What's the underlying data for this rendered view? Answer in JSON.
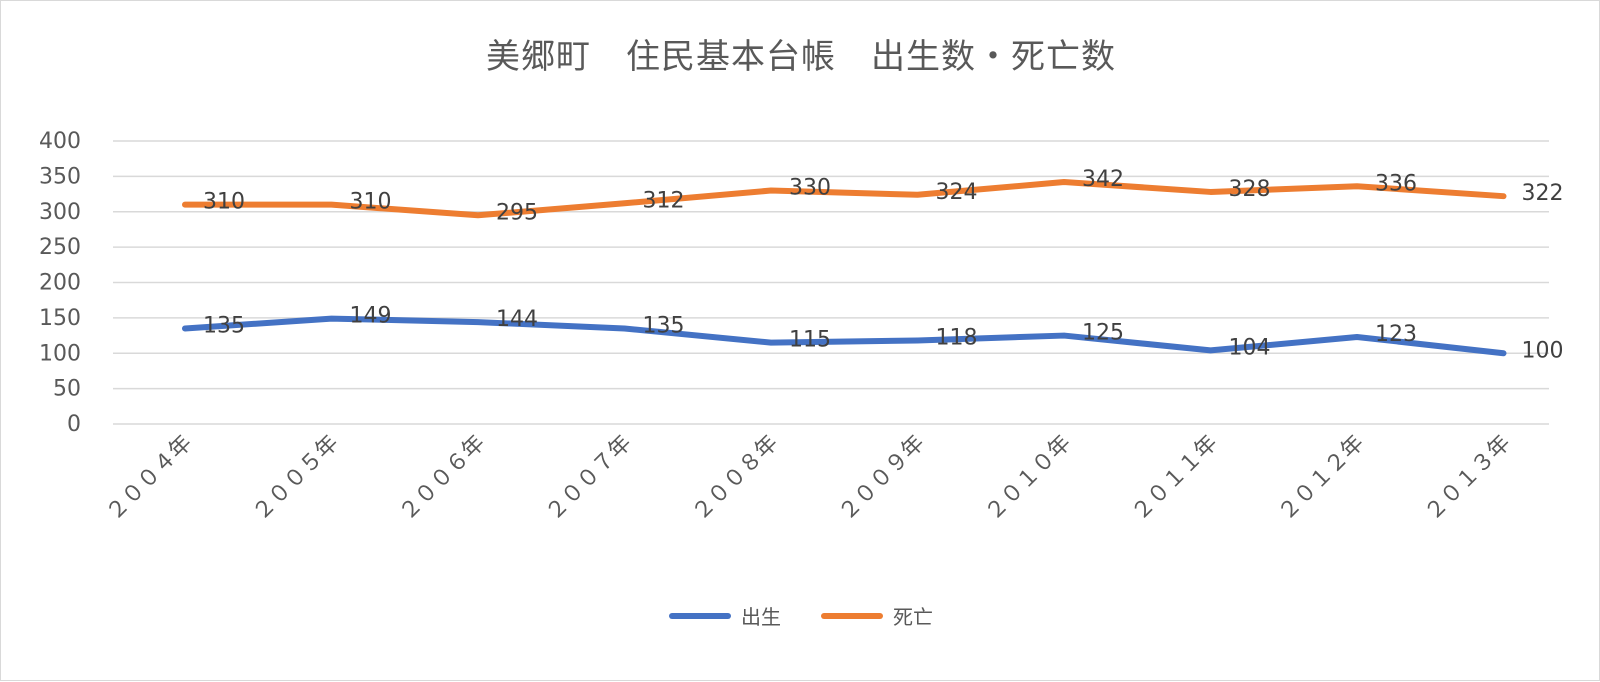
{
  "chart_data": {
    "type": "line",
    "title": "美郷町　住民基本台帳　出生数・死亡数",
    "xlabel": "",
    "ylabel": "",
    "ylim": [
      0,
      400
    ],
    "yticks": [
      "400",
      "350",
      "300",
      "250",
      "200",
      "150",
      "100",
      "50",
      "0"
    ],
    "ytick_values": [
      400,
      350,
      300,
      250,
      200,
      150,
      100,
      50,
      0
    ],
    "categories": [
      "２００４年",
      "２００５年",
      "２００６年",
      "２００７年",
      "２００８年",
      "２００９年",
      "２０１０年",
      "２０１１年",
      "２０１２年",
      "２０１３年"
    ],
    "series": [
      {
        "name": "出生",
        "color": "#4472c4",
        "values": [
          135,
          149,
          144,
          135,
          115,
          118,
          125,
          104,
          123,
          100
        ],
        "labels": [
          "135",
          "149",
          "144",
          "135",
          "115",
          "118",
          "125",
          "104",
          "123",
          "100"
        ]
      },
      {
        "name": "死亡",
        "color": "#ed7d31",
        "values": [
          310,
          310,
          295,
          312,
          330,
          324,
          342,
          328,
          336,
          322
        ],
        "labels": [
          "310",
          "310",
          "295",
          "312",
          "330",
          "324",
          "342",
          "328",
          "336",
          "322"
        ]
      }
    ],
    "grid": true,
    "legend": "bottom"
  }
}
